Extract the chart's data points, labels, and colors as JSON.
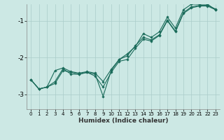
{
  "xlabel": "Humidex (Indice chaleur)",
  "bg_color": "#cce8e4",
  "grid_color": "#aaccca",
  "line_color": "#1a6b5a",
  "xlim": [
    -0.5,
    23.5
  ],
  "ylim": [
    -3.4,
    -0.55
  ],
  "yticks": [
    -3,
    -2,
    -1
  ],
  "xticks": [
    0,
    1,
    2,
    3,
    4,
    5,
    6,
    7,
    8,
    9,
    10,
    11,
    12,
    13,
    14,
    15,
    16,
    17,
    18,
    19,
    20,
    21,
    22,
    23
  ],
  "line1_x": [
    0,
    1,
    2,
    3,
    4,
    5,
    6,
    7,
    8,
    9,
    10,
    11,
    12,
    13,
    14,
    15,
    16,
    17,
    18,
    19,
    20,
    21,
    22,
    23
  ],
  "line1_y": [
    -2.6,
    -2.85,
    -2.8,
    -2.7,
    -2.35,
    -2.4,
    -2.45,
    -2.4,
    -2.5,
    -2.8,
    -2.4,
    -2.1,
    -2.05,
    -1.75,
    -1.5,
    -1.55,
    -1.4,
    -1.0,
    -1.3,
    -0.8,
    -0.65,
    -0.6,
    -0.6,
    -0.7
  ],
  "line2_x": [
    0,
    1,
    2,
    3,
    4,
    5,
    6,
    7,
    8,
    9,
    10,
    11,
    12,
    13,
    14,
    15,
    16,
    17,
    18,
    19,
    20,
    21,
    22,
    23
  ],
  "line2_y": [
    -2.6,
    -2.85,
    -2.8,
    -2.65,
    -2.3,
    -2.45,
    -2.45,
    -2.4,
    -2.45,
    -3.05,
    -2.35,
    -2.05,
    -1.9,
    -1.7,
    -1.35,
    -1.45,
    -1.3,
    -0.9,
    -1.2,
    -0.7,
    -0.55,
    -0.55,
    -0.55,
    -0.7
  ],
  "line3_x": [
    0,
    1,
    2,
    3,
    4,
    5,
    6,
    7,
    8,
    9,
    10,
    11,
    12,
    13,
    14,
    15,
    16,
    17,
    18,
    19,
    20,
    21,
    22,
    23
  ],
  "line3_y": [
    -2.6,
    -2.85,
    -2.8,
    -2.35,
    -2.28,
    -2.38,
    -2.42,
    -2.38,
    -2.42,
    -2.65,
    -2.32,
    -2.05,
    -1.95,
    -1.68,
    -1.45,
    -1.52,
    -1.38,
    -0.98,
    -1.28,
    -0.78,
    -0.62,
    -0.58,
    -0.58,
    -0.68
  ]
}
